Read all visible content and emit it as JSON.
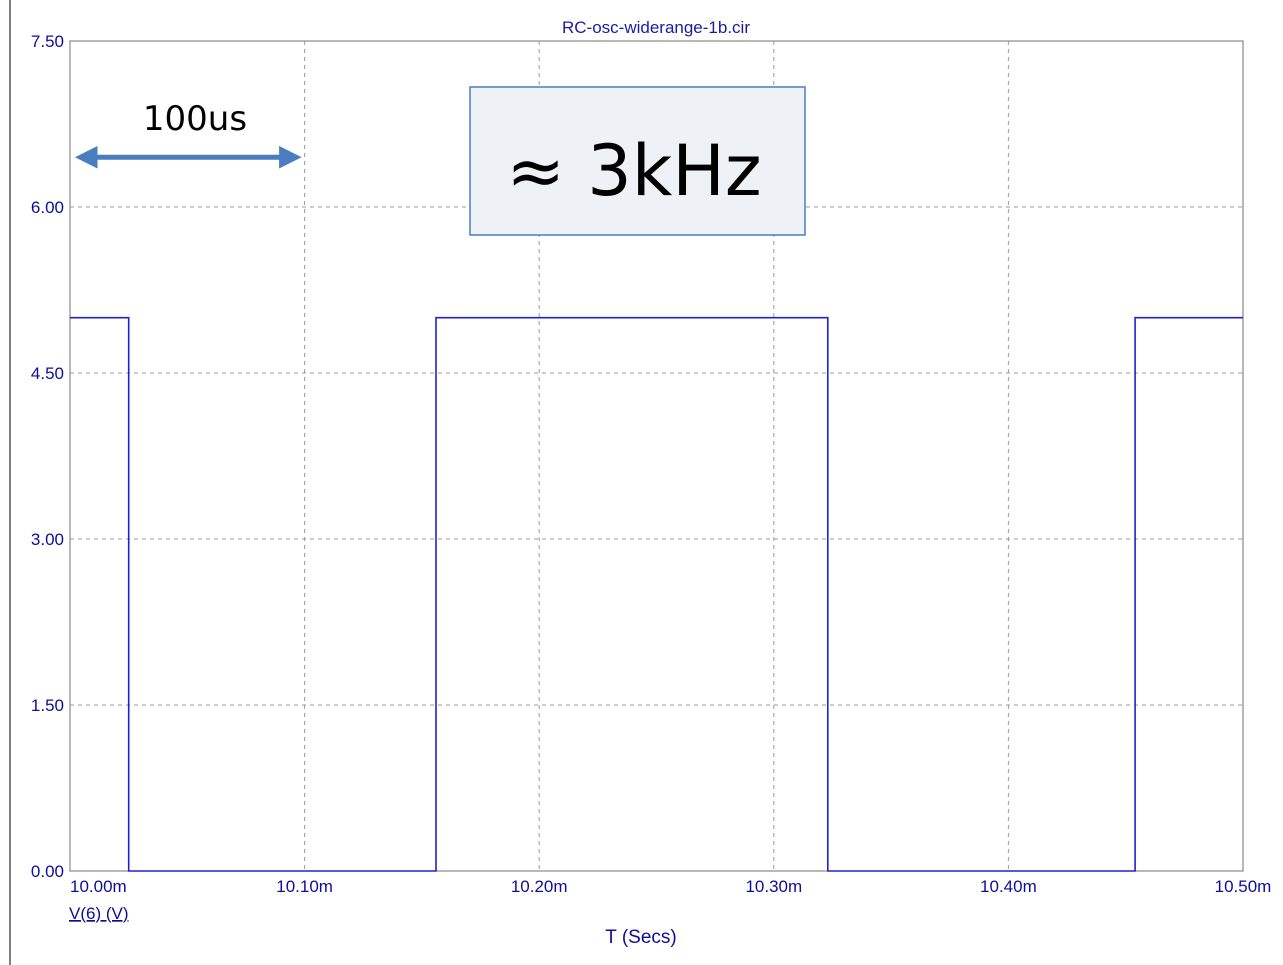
{
  "chart_data": {
    "type": "line",
    "title": "RC-osc-widerange-1b.cir",
    "xlabel": "T (Secs)",
    "ylabel": "",
    "xlim": [
      10.0,
      10.5
    ],
    "ylim": [
      0.0,
      7.5
    ],
    "x_unit": "ms",
    "grid": true,
    "x_ticks": [
      {
        "value": 10.0,
        "label": "10.00m"
      },
      {
        "value": 10.1,
        "label": "10.10m"
      },
      {
        "value": 10.2,
        "label": "10.20m"
      },
      {
        "value": 10.3,
        "label": "10.30m"
      },
      {
        "value": 10.4,
        "label": "10.40m"
      },
      {
        "value": 10.5,
        "label": "10.50m"
      }
    ],
    "y_ticks": [
      {
        "value": 0.0,
        "label": "0.00"
      },
      {
        "value": 1.5,
        "label": "1.50"
      },
      {
        "value": 3.0,
        "label": "3.00"
      },
      {
        "value": 4.5,
        "label": "4.50"
      },
      {
        "value": 6.0,
        "label": "6.00"
      },
      {
        "value": 7.5,
        "label": "7.50"
      }
    ],
    "series": [
      {
        "name": "V(6) (V)",
        "color": "#2020d0",
        "x": [
          10.0,
          10.025,
          10.025,
          10.156,
          10.156,
          10.323,
          10.323,
          10.454,
          10.454,
          10.5
        ],
        "y": [
          5.0,
          5.0,
          0.0,
          0.0,
          5.0,
          5.0,
          0.0,
          0.0,
          5.0,
          5.0
        ]
      }
    ],
    "annotations": {
      "span_label": "100us",
      "span_x": [
        10.0,
        10.1
      ],
      "span_y": 6.45,
      "frequency_label": "≈ 3kHz"
    }
  }
}
